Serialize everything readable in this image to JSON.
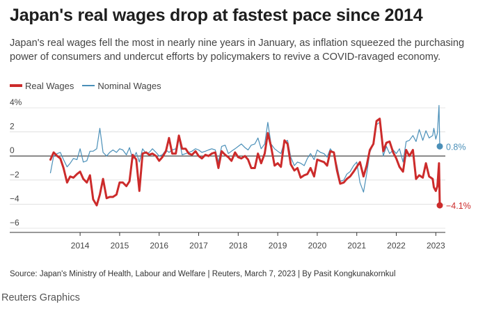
{
  "title": "Japan's real wages drop at fastest pace since 2014",
  "subtitle": "Japan's real wages fell the most in nearly nine years in January, as inflation squeezed the purchasing power of consumers and undercut efforts by policymakers to revive a COVID-ravaged economy.",
  "source": "Source: Japan's Ministry of Health, Labour and Welfare | Reuters, March 7, 2023 | By Pasit Kongkunakornkul",
  "credit": "Reuters Graphics",
  "colors": {
    "real": "#cc2b2b",
    "nominal": "#4a8fb8",
    "axis": "#333333",
    "grid": "#cfcfcf"
  },
  "chart_data": {
    "type": "line",
    "xlabel": "",
    "ylabel": "",
    "ylim": [
      -6,
      4
    ],
    "xlim": [
      2013.1,
      2023.1
    ],
    "y_ticks": [
      {
        "value": 4,
        "label": "4%"
      },
      {
        "value": 2,
        "label": "2"
      },
      {
        "value": 0,
        "label": "0"
      },
      {
        "value": -2,
        "label": "−2"
      },
      {
        "value": -4,
        "label": "−4"
      },
      {
        "value": -6,
        "label": "−6"
      }
    ],
    "x_ticks": [
      {
        "value": 2014,
        "label": "2014"
      },
      {
        "value": 2015,
        "label": "2015"
      },
      {
        "value": 2016,
        "label": "2016"
      },
      {
        "value": 2017,
        "label": "2017"
      },
      {
        "value": 2018,
        "label": "2018"
      },
      {
        "value": 2019,
        "label": "2019"
      },
      {
        "value": 2020,
        "label": "2020"
      },
      {
        "value": 2021,
        "label": "2021"
      },
      {
        "value": 2022,
        "label": "2022"
      },
      {
        "value": 2023,
        "label": "2023"
      }
    ],
    "grid": false,
    "legend_position": "top-left",
    "series": [
      {
        "name": "Real Wages",
        "points": [
          [
            2013.25,
            -0.3
          ],
          [
            2013.33,
            0.3
          ],
          [
            2013.42,
            0.0
          ],
          [
            2013.5,
            -0.2
          ],
          [
            2013.58,
            -1.0
          ],
          [
            2013.67,
            -2.2
          ],
          [
            2013.75,
            -1.7
          ],
          [
            2013.83,
            -1.8
          ],
          [
            2013.92,
            -1.5
          ],
          [
            2014.0,
            -1.3
          ],
          [
            2014.08,
            -1.9
          ],
          [
            2014.17,
            -2.2
          ],
          [
            2014.25,
            -1.6
          ],
          [
            2014.33,
            -3.6
          ],
          [
            2014.42,
            -4.1
          ],
          [
            2014.5,
            -3.2
          ],
          [
            2014.58,
            -1.9
          ],
          [
            2014.67,
            -3.5
          ],
          [
            2014.75,
            -3.4
          ],
          [
            2014.83,
            -3.4
          ],
          [
            2014.92,
            -3.2
          ],
          [
            2015.0,
            -2.2
          ],
          [
            2015.08,
            -2.2
          ],
          [
            2015.17,
            -2.5
          ],
          [
            2015.25,
            -2.1
          ],
          [
            2015.33,
            0.1
          ],
          [
            2015.42,
            -0.3
          ],
          [
            2015.5,
            -2.9
          ],
          [
            2015.58,
            0.2
          ],
          [
            2015.67,
            0.3
          ],
          [
            2015.75,
            0.1
          ],
          [
            2015.83,
            0.2
          ],
          [
            2015.92,
            0.0
          ],
          [
            2016.0,
            -0.4
          ],
          [
            2016.08,
            -0.1
          ],
          [
            2016.17,
            0.4
          ],
          [
            2016.25,
            1.5
          ],
          [
            2016.33,
            0.2
          ],
          [
            2016.42,
            0.2
          ],
          [
            2016.5,
            1.7
          ],
          [
            2016.58,
            0.6
          ],
          [
            2016.67,
            0.6
          ],
          [
            2016.75,
            0.2
          ],
          [
            2016.83,
            0.1
          ],
          [
            2016.92,
            0.4
          ],
          [
            2017.0,
            0.0
          ],
          [
            2017.08,
            -0.2
          ],
          [
            2017.17,
            0.1
          ],
          [
            2017.25,
            0.0
          ],
          [
            2017.33,
            0.2
          ],
          [
            2017.42,
            0.3
          ],
          [
            2017.5,
            -1.0
          ],
          [
            2017.58,
            0.4
          ],
          [
            2017.67,
            0.1
          ],
          [
            2017.75,
            -0.1
          ],
          [
            2017.83,
            -0.4
          ],
          [
            2017.92,
            0.3
          ],
          [
            2018.0,
            -0.1
          ],
          [
            2018.08,
            -0.2
          ],
          [
            2018.17,
            0.0
          ],
          [
            2018.25,
            -0.3
          ],
          [
            2018.33,
            -1.0
          ],
          [
            2018.42,
            -1.0
          ],
          [
            2018.5,
            0.2
          ],
          [
            2018.58,
            -0.6
          ],
          [
            2018.67,
            0.2
          ],
          [
            2018.75,
            1.9
          ],
          [
            2018.83,
            0.8
          ],
          [
            2018.92,
            -0.8
          ],
          [
            2019.0,
            -0.6
          ],
          [
            2019.08,
            -0.9
          ],
          [
            2019.17,
            1.3
          ],
          [
            2019.25,
            1.0
          ],
          [
            2019.33,
            -0.7
          ],
          [
            2019.42,
            -1.2
          ],
          [
            2019.5,
            -1.0
          ],
          [
            2019.58,
            -1.8
          ],
          [
            2019.67,
            -1.6
          ],
          [
            2019.75,
            -1.5
          ],
          [
            2019.83,
            -1.0
          ],
          [
            2019.92,
            -1.7
          ],
          [
            2020.0,
            -0.3
          ],
          [
            2020.08,
            -0.4
          ],
          [
            2020.17,
            -0.5
          ],
          [
            2020.25,
            -0.8
          ],
          [
            2020.33,
            0.4
          ],
          [
            2020.42,
            0.3
          ],
          [
            2020.5,
            -1.2
          ],
          [
            2020.58,
            -2.3
          ],
          [
            2020.67,
            -2.2
          ],
          [
            2020.75,
            -1.9
          ],
          [
            2020.83,
            -1.7
          ],
          [
            2020.92,
            -1.3
          ],
          [
            2021.0,
            -0.9
          ],
          [
            2021.08,
            -0.5
          ],
          [
            2021.17,
            -1.7
          ],
          [
            2021.25,
            -0.8
          ],
          [
            2021.33,
            0.5
          ],
          [
            2021.42,
            1.0
          ],
          [
            2021.5,
            2.9
          ],
          [
            2021.58,
            3.1
          ],
          [
            2021.67,
            0.4
          ],
          [
            2021.75,
            1.1
          ],
          [
            2021.83,
            1.2
          ],
          [
            2021.92,
            0.3
          ],
          [
            2022.0,
            -0.2
          ],
          [
            2022.08,
            -0.9
          ],
          [
            2022.17,
            -1.3
          ],
          [
            2022.25,
            0.5
          ],
          [
            2022.33,
            0.0
          ],
          [
            2022.42,
            0.5
          ],
          [
            2022.5,
            -1.9
          ],
          [
            2022.58,
            -1.6
          ],
          [
            2022.67,
            -1.8
          ],
          [
            2022.75,
            -0.6
          ],
          [
            2022.83,
            -1.7
          ],
          [
            2022.92,
            -1.9
          ],
          [
            2022.95,
            -2.6
          ],
          [
            2023.0,
            -2.9
          ],
          [
            2023.04,
            -2.5
          ],
          [
            2023.08,
            -0.6
          ],
          [
            2023.1,
            -4.1
          ]
        ]
      },
      {
        "name": "Nominal Wages",
        "points": [
          [
            2013.25,
            -1.4
          ],
          [
            2013.33,
            0.0
          ],
          [
            2013.42,
            0.2
          ],
          [
            2013.5,
            0.3
          ],
          [
            2013.58,
            -0.3
          ],
          [
            2013.67,
            -0.9
          ],
          [
            2013.75,
            -0.6
          ],
          [
            2013.83,
            -0.2
          ],
          [
            2013.92,
            -0.3
          ],
          [
            2014.0,
            0.6
          ],
          [
            2014.08,
            -0.5
          ],
          [
            2014.17,
            -0.4
          ],
          [
            2014.25,
            0.4
          ],
          [
            2014.33,
            0.4
          ],
          [
            2014.42,
            0.6
          ],
          [
            2014.5,
            2.3
          ],
          [
            2014.58,
            0.3
          ],
          [
            2014.67,
            0.0
          ],
          [
            2014.75,
            0.3
          ],
          [
            2014.83,
            0.5
          ],
          [
            2014.92,
            0.3
          ],
          [
            2015.0,
            0.6
          ],
          [
            2015.08,
            0.5
          ],
          [
            2015.17,
            0.1
          ],
          [
            2015.25,
            0.7
          ],
          [
            2015.33,
            -0.3
          ],
          [
            2015.42,
            0.3
          ],
          [
            2015.5,
            -0.5
          ],
          [
            2015.58,
            0.6
          ],
          [
            2015.67,
            0.2
          ],
          [
            2015.75,
            0.3
          ],
          [
            2015.83,
            0.6
          ],
          [
            2015.92,
            0.3
          ],
          [
            2016.0,
            0.0
          ],
          [
            2016.08,
            0.1
          ],
          [
            2016.17,
            0.5
          ],
          [
            2016.25,
            0.3
          ],
          [
            2016.33,
            0.5
          ],
          [
            2016.42,
            0.6
          ],
          [
            2016.5,
            1.5
          ],
          [
            2016.58,
            0.1
          ],
          [
            2016.67,
            0.2
          ],
          [
            2016.75,
            0.3
          ],
          [
            2016.83,
            0.4
          ],
          [
            2016.92,
            0.6
          ],
          [
            2017.0,
            0.5
          ],
          [
            2017.08,
            0.3
          ],
          [
            2017.17,
            0.4
          ],
          [
            2017.25,
            0.5
          ],
          [
            2017.33,
            0.6
          ],
          [
            2017.42,
            0.5
          ],
          [
            2017.5,
            -0.5
          ],
          [
            2017.58,
            0.8
          ],
          [
            2017.67,
            0.9
          ],
          [
            2017.75,
            0.2
          ],
          [
            2017.83,
            0.4
          ],
          [
            2017.92,
            0.6
          ],
          [
            2018.0,
            0.8
          ],
          [
            2018.08,
            1.0
          ],
          [
            2018.17,
            0.7
          ],
          [
            2018.25,
            0.5
          ],
          [
            2018.33,
            0.9
          ],
          [
            2018.42,
            1.0
          ],
          [
            2018.5,
            1.5
          ],
          [
            2018.58,
            0.6
          ],
          [
            2018.67,
            1.0
          ],
          [
            2018.75,
            2.8
          ],
          [
            2018.83,
            1.0
          ],
          [
            2018.92,
            0.6
          ],
          [
            2019.0,
            0.4
          ],
          [
            2019.08,
            0.2
          ],
          [
            2019.17,
            1.2
          ],
          [
            2019.25,
            1.3
          ],
          [
            2019.33,
            -0.1
          ],
          [
            2019.42,
            -0.8
          ],
          [
            2019.5,
            -0.5
          ],
          [
            2019.58,
            -0.6
          ],
          [
            2019.67,
            -0.8
          ],
          [
            2019.75,
            -0.2
          ],
          [
            2019.83,
            0.2
          ],
          [
            2019.92,
            -0.3
          ],
          [
            2020.0,
            0.5
          ],
          [
            2020.08,
            0.3
          ],
          [
            2020.17,
            0.2
          ],
          [
            2020.25,
            -0.1
          ],
          [
            2020.33,
            0.6
          ],
          [
            2020.42,
            0.2
          ],
          [
            2020.5,
            -0.8
          ],
          [
            2020.58,
            -2.1
          ],
          [
            2020.67,
            -2.0
          ],
          [
            2020.75,
            -1.5
          ],
          [
            2020.83,
            -1.3
          ],
          [
            2020.92,
            -0.8
          ],
          [
            2021.0,
            -0.5
          ],
          [
            2021.08,
            -2.2
          ],
          [
            2021.17,
            -3.0
          ],
          [
            2021.25,
            -1.5
          ],
          [
            2021.33,
            0.3
          ],
          [
            2021.42,
            1.0
          ],
          [
            2021.5,
            2.6
          ],
          [
            2021.58,
            2.8
          ],
          [
            2021.67,
            0.0
          ],
          [
            2021.75,
            0.8
          ],
          [
            2021.83,
            0.2
          ],
          [
            2021.92,
            0.5
          ],
          [
            2022.0,
            0.2
          ],
          [
            2022.08,
            0.6
          ],
          [
            2022.17,
            -0.5
          ],
          [
            2022.25,
            1.2
          ],
          [
            2022.33,
            1.3
          ],
          [
            2022.42,
            1.7
          ],
          [
            2022.5,
            1.2
          ],
          [
            2022.58,
            2.2
          ],
          [
            2022.67,
            1.3
          ],
          [
            2022.75,
            2.1
          ],
          [
            2022.83,
            1.5
          ],
          [
            2022.92,
            1.7
          ],
          [
            2022.95,
            2.3
          ],
          [
            2023.0,
            1.4
          ],
          [
            2023.04,
            1.9
          ],
          [
            2023.08,
            4.2
          ],
          [
            2023.1,
            0.8
          ]
        ]
      }
    ],
    "annotations": [
      {
        "series": "Nominal Wages",
        "label": "0.8%"
      },
      {
        "series": "Real Wages",
        "label": "−4.1%"
      }
    ]
  }
}
